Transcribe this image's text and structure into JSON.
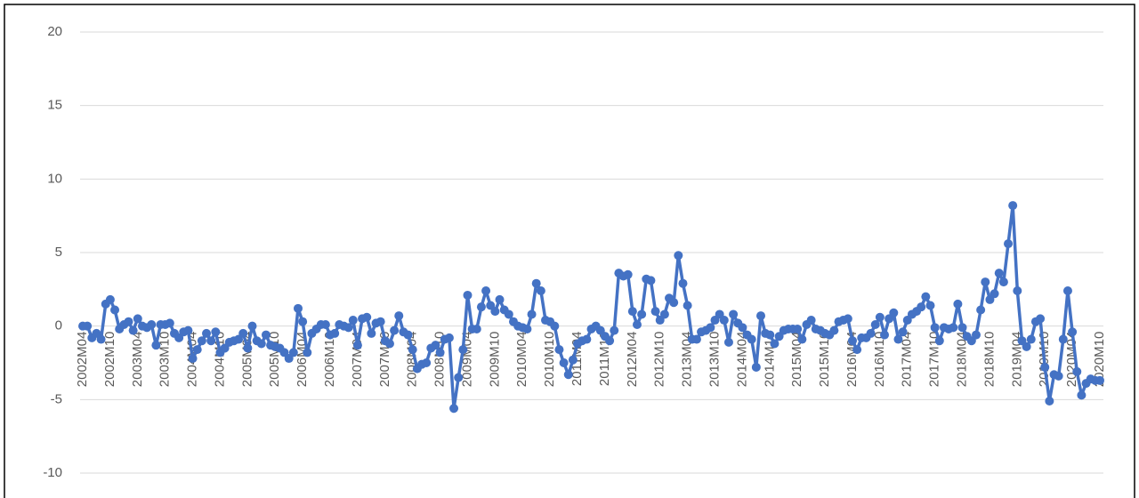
{
  "chart_data": {
    "type": "line",
    "categories": [
      "2002M04",
      null,
      null,
      null,
      null,
      null,
      "2002M10",
      null,
      null,
      null,
      null,
      null,
      "2003M04",
      null,
      null,
      null,
      null,
      null,
      "2003M10",
      null,
      null,
      null,
      null,
      null,
      "2004M04",
      null,
      null,
      null,
      null,
      null,
      "2004M10",
      null,
      null,
      null,
      null,
      null,
      "2005M04",
      null,
      null,
      null,
      null,
      null,
      "2005M10",
      null,
      null,
      null,
      null,
      null,
      "2006M04",
      null,
      null,
      null,
      null,
      null,
      "2006M10",
      null,
      null,
      null,
      null,
      null,
      "2007M04",
      null,
      null,
      null,
      null,
      null,
      "2007M10",
      null,
      null,
      null,
      null,
      null,
      "2008M04",
      null,
      null,
      null,
      null,
      null,
      "2008M10",
      null,
      null,
      null,
      null,
      null,
      "2009M04",
      null,
      null,
      null,
      null,
      null,
      "2009M10",
      null,
      null,
      null,
      null,
      null,
      "2010M04",
      null,
      null,
      null,
      null,
      null,
      "2010M10",
      null,
      null,
      null,
      null,
      null,
      "2011M04",
      null,
      null,
      null,
      null,
      null,
      "2011M10",
      null,
      null,
      null,
      null,
      null,
      "2012M04",
      null,
      null,
      null,
      null,
      null,
      "2012M10",
      null,
      null,
      null,
      null,
      null,
      "2013M04",
      null,
      null,
      null,
      null,
      null,
      "2013M10",
      null,
      null,
      null,
      null,
      null,
      "2014M04",
      null,
      null,
      null,
      null,
      null,
      "2014M10",
      null,
      null,
      null,
      null,
      null,
      "2015M04",
      null,
      null,
      null,
      null,
      null,
      "2015M10",
      null,
      null,
      null,
      null,
      null,
      "2016M04",
      null,
      null,
      null,
      null,
      null,
      "2016M10",
      null,
      null,
      null,
      null,
      null,
      "2017M04",
      null,
      null,
      null,
      null,
      null,
      "2017M10",
      null,
      null,
      null,
      null,
      null,
      "2018M04",
      null,
      null,
      null,
      null,
      null,
      "2018M10",
      null,
      null,
      null,
      null,
      null,
      "2019M04",
      null,
      null,
      null,
      null,
      null,
      "2019M10",
      null,
      null,
      null,
      null,
      null,
      "2020M04",
      null,
      null,
      null,
      null,
      null,
      "2020M10"
    ],
    "values": [
      0,
      0,
      -0.8,
      -0.5,
      -0.9,
      1.5,
      1.8,
      1.1,
      -0.2,
      0.1,
      0.3,
      -0.3,
      0.5,
      0,
      -0.1,
      0.1,
      -1.3,
      0.1,
      0.1,
      0.2,
      -0.5,
      -0.8,
      -0.4,
      -0.3,
      -2.2,
      -1.6,
      -1.0,
      -0.5,
      -1.0,
      -0.4,
      -1.8,
      -1.5,
      -1.1,
      -1.0,
      -0.9,
      -0.5,
      -1.5,
      0.0,
      -1.0,
      -1.2,
      -0.6,
      -1.3,
      -1.4,
      -1.5,
      -1.8,
      -2.2,
      -1.8,
      1.2,
      0.3,
      -1.8,
      -0.5,
      -0.2,
      0.1,
      0.1,
      -0.6,
      -0.5,
      0.1,
      0.0,
      -0.1,
      0.4,
      -1.3,
      0.5,
      0.6,
      -0.5,
      0.2,
      0.3,
      -1.0,
      -1.2,
      -0.3,
      0.7,
      -0.4,
      -0.6,
      -1.6,
      -2.9,
      -2.6,
      -2.5,
      -1.5,
      -1.3,
      -1.8,
      -0.9,
      -0.8,
      -5.6,
      -3.5,
      -1.6,
      2.1,
      -0.2,
      -0.2,
      1.3,
      2.4,
      1.4,
      1.0,
      1.8,
      1.1,
      0.8,
      0.3,
      0.0,
      -0.1,
      -0.2,
      0.8,
      2.9,
      2.4,
      0.4,
      0.3,
      0.0,
      -1.6,
      -2.5,
      -3.3,
      -2.3,
      -1.2,
      -1.0,
      -0.9,
      -0.2,
      0.0,
      -0.3,
      -0.7,
      -1.0,
      -0.3,
      3.6,
      3.4,
      3.5,
      1.0,
      0.1,
      0.8,
      3.2,
      3.1,
      1.0,
      0.4,
      0.8,
      1.9,
      1.6,
      4.8,
      2.9,
      1.4,
      -0.9,
      -0.9,
      -0.4,
      -0.3,
      -0.1,
      0.4,
      0.8,
      0.4,
      -1.1,
      0.8,
      0.2,
      -0.1,
      -0.6,
      -0.9,
      -2.8,
      0.7,
      -0.5,
      -0.6,
      -1.2,
      -0.7,
      -0.3,
      -0.2,
      -0.2,
      -0.2,
      -0.9,
      0.1,
      0.4,
      -0.2,
      -0.3,
      -0.5,
      -0.6,
      -0.3,
      0.3,
      0.4,
      0.5,
      -1.0,
      -1.6,
      -0.8,
      -0.8,
      -0.5,
      0.1,
      0.6,
      -0.6,
      0.5,
      0.9,
      -0.9,
      -0.4,
      0.4,
      0.8,
      1.0,
      1.3,
      2.0,
      1.4,
      -0.1,
      -1.0,
      -0.1,
      -0.2,
      -0.1,
      1.5,
      -0.1,
      -0.7,
      -1.0,
      -0.6,
      1.1,
      3.0,
      1.8,
      2.2,
      3.6,
      3.0,
      5.6,
      8.2,
      2.4,
      -1.0,
      -1.4,
      -0.9,
      0.3,
      0.5,
      -2.8,
      -5.1,
      -3.3,
      -3.4,
      -0.9,
      2.4,
      -0.4,
      -3.1,
      -4.7,
      -3.9,
      -3.6,
      -3.7,
      -3.7
    ],
    "color": "#4472c4",
    "ylim": [
      -10,
      20
    ],
    "yticks": [
      -10,
      -5,
      0,
      5,
      10,
      15,
      20
    ],
    "grid": true
  }
}
